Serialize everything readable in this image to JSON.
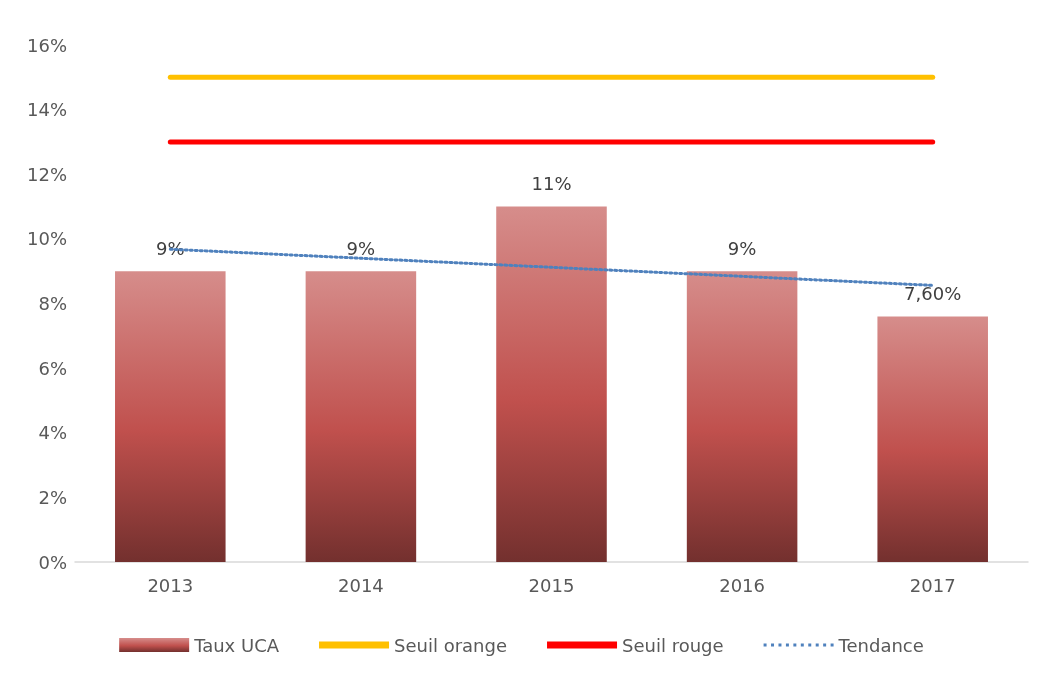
{
  "chart_data": {
    "type": "bar",
    "categories": [
      "2013",
      "2014",
      "2015",
      "2016",
      "2017"
    ],
    "series": [
      {
        "name": "Taux UCA",
        "color": "#c0504d",
        "values": [
          9,
          9,
          11,
          9,
          7.6
        ],
        "value_labels": [
          "9%",
          "9%",
          "11%",
          "9%",
          "7,60%"
        ]
      },
      {
        "name": "Seuil orange",
        "type": "line",
        "color": "#ffc000",
        "values": [
          15,
          15,
          15,
          15,
          15
        ],
        "line_style": "solid"
      },
      {
        "name": "Seuil rouge",
        "type": "line",
        "color": "#ff0000",
        "values": [
          13,
          13,
          13,
          13,
          13
        ],
        "line_style": "solid"
      },
      {
        "name": "Tendance",
        "type": "line",
        "color": "#4f81bd",
        "values": [
          9.68,
          9.4,
          9.12,
          8.84,
          8.56
        ],
        "line_style": "dotted"
      }
    ],
    "ylim": [
      0,
      16
    ],
    "yticks": [
      {
        "value": 0,
        "label": "0%"
      },
      {
        "value": 2,
        "label": "2%"
      },
      {
        "value": 4,
        "label": "4%"
      },
      {
        "value": 6,
        "label": "6%"
      },
      {
        "value": 8,
        "label": "8%"
      },
      {
        "value": 10,
        "label": "10%"
      },
      {
        "value": 12,
        "label": "12%"
      },
      {
        "value": 14,
        "label": "14%"
      },
      {
        "value": 16,
        "label": "16%"
      }
    ],
    "grid": false,
    "legend": "bottom",
    "marker": "none"
  }
}
